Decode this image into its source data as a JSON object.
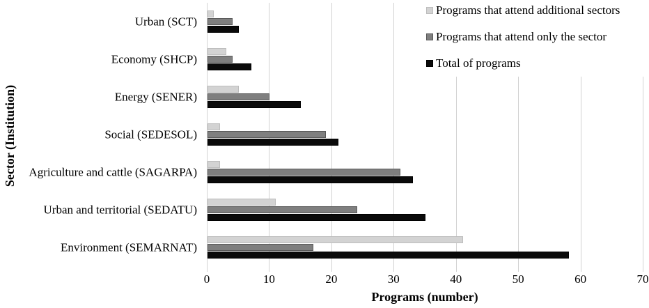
{
  "chart_data": {
    "type": "bar",
    "orientation": "horizontal",
    "title": "",
    "xlabel": "Programs (number)",
    "ylabel": "Sector (Institution)",
    "xlim": [
      0,
      70
    ],
    "xticks": [
      0,
      10,
      20,
      30,
      40,
      50,
      60,
      70
    ],
    "grid": true,
    "legend_position": "top-right",
    "categories": [
      "Urban (SCT)",
      "Economy (SHCP)",
      "Energy (SENER)",
      "Social (SEDESOL)",
      "Agriculture and cattle (SAGARPA)",
      "Urban and territorial (SEDATU)",
      "Environment (SEMARNAT)"
    ],
    "series": [
      {
        "key": "additional-sectors",
        "name": "Programs that attend additional sectors",
        "color": "#d3d3d3",
        "border": "#bdbdbd",
        "values": [
          1,
          3,
          5,
          2,
          2,
          11,
          41
        ]
      },
      {
        "key": "only-the-sector",
        "name": "Programs that attend only the sector",
        "color": "#7f7f7f",
        "border": "#595959",
        "values": [
          4,
          4,
          10,
          19,
          31,
          24,
          17
        ]
      },
      {
        "key": "total",
        "name": "Total of programs",
        "color": "#0a0a0a",
        "border": "#000000",
        "values": [
          5,
          7,
          15,
          21,
          33,
          35,
          58
        ]
      }
    ],
    "colors": {
      "gridline": "#d2d2d2",
      "text": "#000000",
      "background": "#ffffff"
    }
  }
}
